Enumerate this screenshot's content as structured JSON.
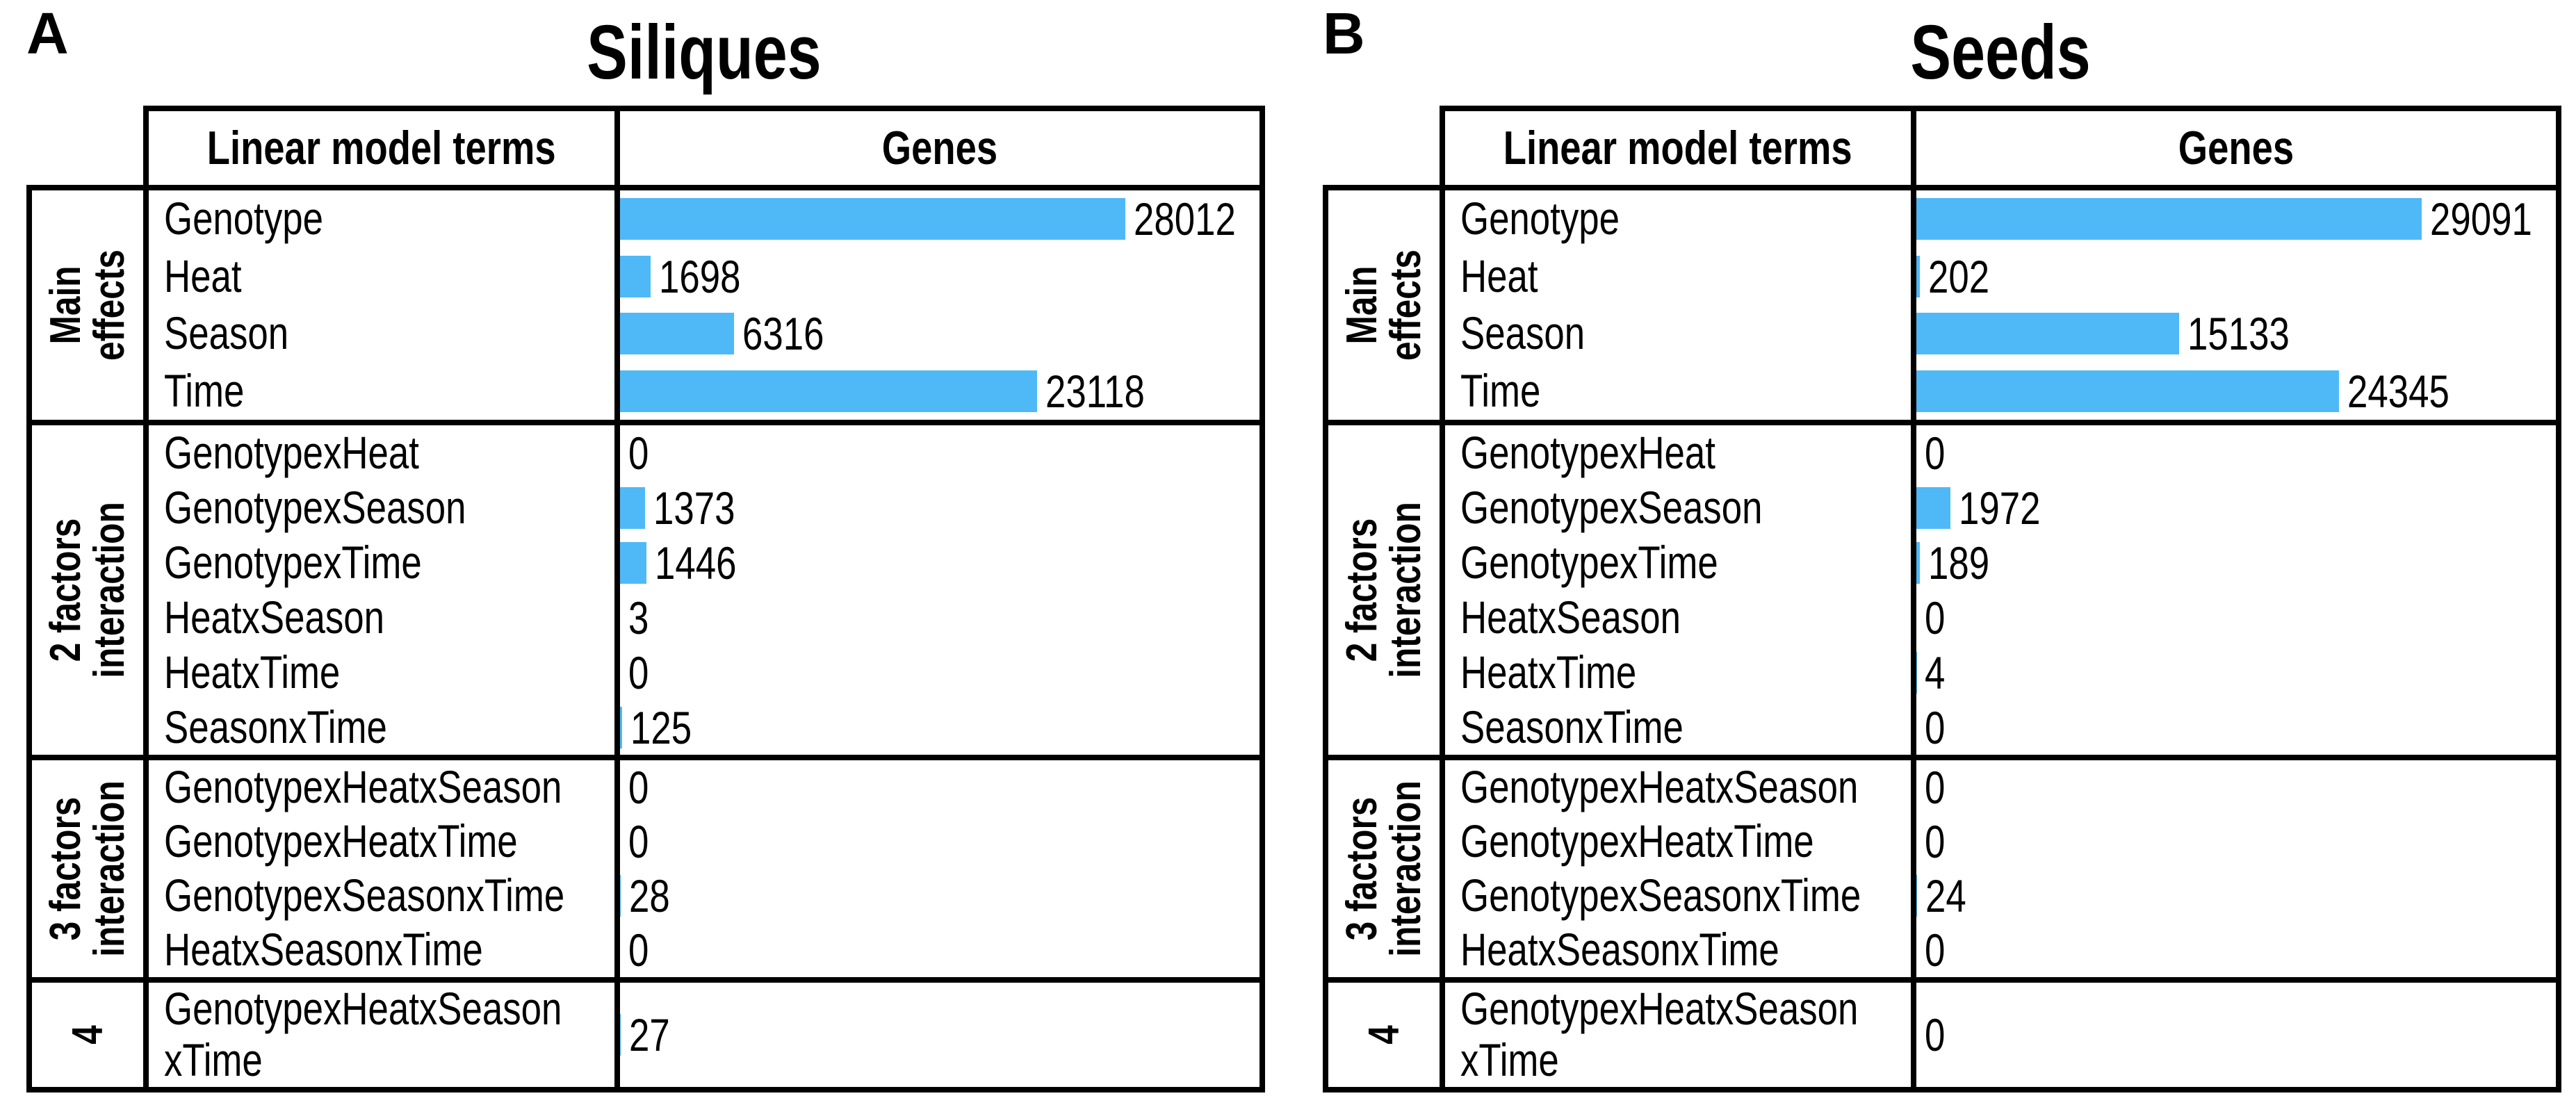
{
  "accent_bar_color": "#4FB9F7",
  "border_color": "#000000",
  "chart_data": [
    {
      "type": "bar",
      "orientation": "horizontal",
      "panel_label": "A",
      "title": "Siliques",
      "columns": [
        "Linear model terms",
        "Genes"
      ],
      "bar_color": "#4FB9F7",
      "value_labels": true,
      "row_groups": [
        {
          "label": "Main\neffects",
          "categories": [
            "Genotype",
            "Heat",
            "Season",
            "Time"
          ],
          "values": [
            28012,
            1698,
            6316,
            23118
          ]
        },
        {
          "label": "2 factors\ninteraction",
          "categories": [
            "GenotypexHeat",
            "GenotypexSeason",
            "GenotypexTime",
            "HeatxSeason",
            "HeatxTime",
            "SeasonxTime"
          ],
          "values": [
            0,
            1373,
            1446,
            3,
            0,
            125
          ]
        },
        {
          "label": "3 factors\ninteraction",
          "categories": [
            "GenotypexHeatxSeason",
            "GenotypexHeatxTime",
            "GenotypexSeasonxTime",
            "HeatxSeasonxTime"
          ],
          "values": [
            0,
            0,
            28,
            0
          ]
        },
        {
          "label": "4",
          "categories": [
            "GenotypexHeatxSeason\nxTime"
          ],
          "values": [
            27
          ]
        }
      ]
    },
    {
      "type": "bar",
      "orientation": "horizontal",
      "panel_label": "B",
      "title": "Seeds",
      "columns": [
        "Linear model terms",
        "Genes"
      ],
      "bar_color": "#4FB9F7",
      "value_labels": true,
      "row_groups": [
        {
          "label": "Main\neffects",
          "categories": [
            "Genotype",
            "Heat",
            "Season",
            "Time"
          ],
          "values": [
            29091,
            202,
            15133,
            24345
          ]
        },
        {
          "label": "2 factors\ninteraction",
          "categories": [
            "GenotypexHeat",
            "GenotypexSeason",
            "GenotypexTime",
            "HeatxSeason",
            "HeatxTime",
            "SeasonxTime"
          ],
          "values": [
            0,
            1972,
            189,
            0,
            4,
            0
          ]
        },
        {
          "label": "3 factors\ninteraction",
          "categories": [
            "GenotypexHeatxSeason",
            "GenotypexHeatxTime",
            "GenotypexSeasonxTime",
            "HeatxSeasonxTime"
          ],
          "values": [
            0,
            0,
            24,
            0
          ]
        },
        {
          "label": "4",
          "categories": [
            "GenotypexHeatxSeason\nxTime"
          ],
          "values": [
            0
          ]
        }
      ]
    }
  ]
}
